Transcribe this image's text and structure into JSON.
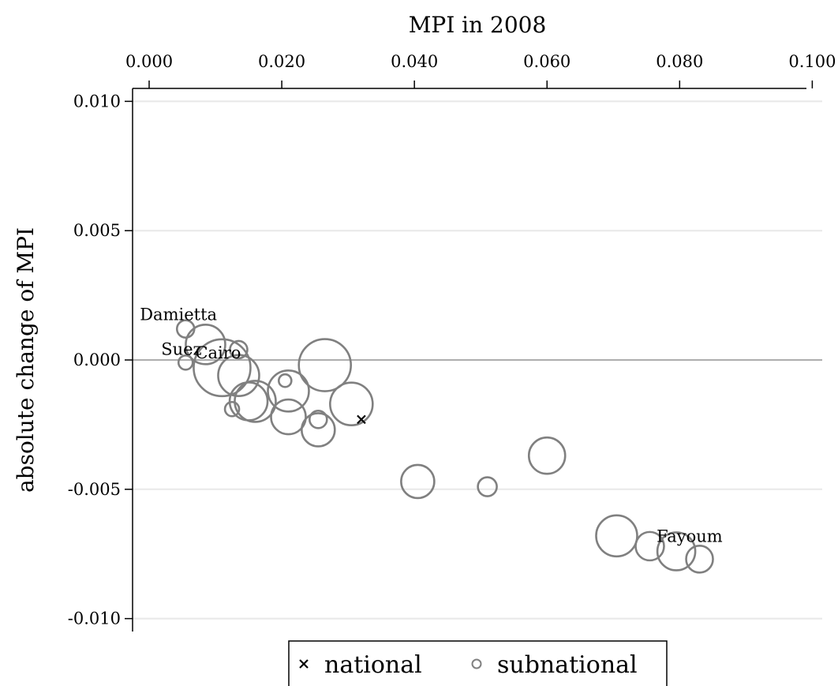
{
  "chart_data": {
    "type": "scatter",
    "xlabel": "MPI in 2008",
    "ylabel": "absolute change of MPI",
    "xlim": [
      -0.0025,
      0.1015
    ],
    "ylim": [
      -0.0105,
      0.0105
    ],
    "xticks": [
      0.0,
      0.02,
      0.04,
      0.06,
      0.08,
      0.1
    ],
    "xtick_labels": [
      "0.000",
      "0.020",
      "0.040",
      "0.060",
      "0.080",
      "0.100"
    ],
    "yticks": [
      0.01,
      0.005,
      0.0,
      -0.005,
      -0.01
    ],
    "ytick_labels": [
      "0.010",
      "0.005",
      "0.000",
      "-0.005",
      "-0.010"
    ],
    "x_axis_position": "top",
    "grid": "horizontal",
    "reference_line_y": 0.0,
    "legend": {
      "position": "bottom",
      "entries": [
        {
          "label": "national",
          "marker": "x"
        },
        {
          "label": "subnational",
          "marker": "circle"
        }
      ]
    },
    "series": [
      {
        "name": "national",
        "marker": "x",
        "color": "#000000",
        "points": [
          {
            "x": 0.032,
            "y": -0.0023
          }
        ]
      },
      {
        "name": "subnational",
        "marker": "circle",
        "color": "#808080",
        "points": [
          {
            "x": 0.0055,
            "y": 0.0012,
            "size": 11,
            "label": "Damietta"
          },
          {
            "x": 0.0055,
            "y": -0.0001,
            "size": 9,
            "label": "Suez"
          },
          {
            "x": 0.0085,
            "y": 0.0006,
            "size": 25
          },
          {
            "x": 0.0135,
            "y": 0.0004,
            "size": 11
          },
          {
            "x": 0.011,
            "y": -0.0003,
            "size": 36,
            "label": "Cairo"
          },
          {
            "x": 0.0135,
            "y": -0.0006,
            "size": 26
          },
          {
            "x": 0.0125,
            "y": -0.0019,
            "size": 9
          },
          {
            "x": 0.015,
            "y": -0.0016,
            "size": 24
          },
          {
            "x": 0.016,
            "y": -0.0016,
            "size": 26
          },
          {
            "x": 0.0205,
            "y": -0.0008,
            "size": 8
          },
          {
            "x": 0.021,
            "y": -0.0012,
            "size": 26
          },
          {
            "x": 0.021,
            "y": -0.0022,
            "size": 22
          },
          {
            "x": 0.0255,
            "y": -0.0023,
            "size": 11
          },
          {
            "x": 0.0255,
            "y": -0.0027,
            "size": 21
          },
          {
            "x": 0.0265,
            "y": -0.0002,
            "size": 33
          },
          {
            "x": 0.0305,
            "y": -0.0017,
            "size": 27
          },
          {
            "x": 0.0405,
            "y": -0.0047,
            "size": 21
          },
          {
            "x": 0.051,
            "y": -0.0049,
            "size": 12
          },
          {
            "x": 0.06,
            "y": -0.0037,
            "size": 23
          },
          {
            "x": 0.0705,
            "y": -0.0068,
            "size": 26
          },
          {
            "x": 0.0755,
            "y": -0.0072,
            "size": 18
          },
          {
            "x": 0.0795,
            "y": -0.0074,
            "size": 24,
            "label": "Fayoum"
          },
          {
            "x": 0.083,
            "y": -0.0077,
            "size": 17
          }
        ]
      }
    ]
  }
}
